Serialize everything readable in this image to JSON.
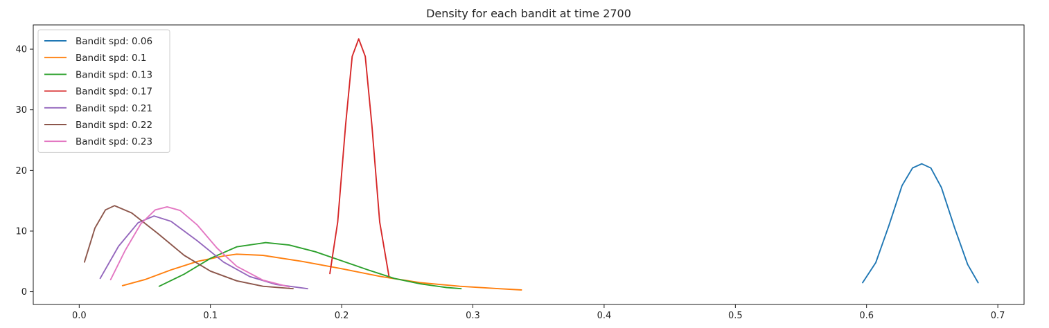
{
  "chart_data": {
    "type": "line",
    "title": "Density for each bandit at time 2700",
    "xlabel": "",
    "ylabel": "",
    "xlim": [
      -0.035,
      0.72
    ],
    "ylim": [
      -2.1,
      44
    ],
    "xticks": [
      0.0,
      0.1,
      0.2,
      0.3,
      0.4,
      0.5,
      0.6,
      0.7
    ],
    "xtick_labels": [
      "0.0",
      "0.1",
      "0.2",
      "0.3",
      "0.4",
      "0.5",
      "0.6",
      "0.7"
    ],
    "yticks": [
      0,
      10,
      20,
      30,
      40
    ],
    "ytick_labels": [
      "0",
      "10",
      "20",
      "30",
      "40"
    ],
    "grid": false,
    "legend_position": "top-left",
    "series": [
      {
        "name": "Bandit spd: 0.06",
        "color": "#1f77b4",
        "x": [
          0.597,
          0.607,
          0.617,
          0.627,
          0.635,
          0.642,
          0.649,
          0.657,
          0.667,
          0.677,
          0.685
        ],
        "y": [
          1.5,
          4.8,
          10.9,
          17.5,
          20.4,
          21.1,
          20.4,
          17.2,
          10.6,
          4.5,
          1.5
        ]
      },
      {
        "name": "Bandit spd: 0.1",
        "color": "#ff7f0e",
        "x": [
          0.033,
          0.05,
          0.07,
          0.09,
          0.11,
          0.12,
          0.14,
          0.17,
          0.2,
          0.23,
          0.26,
          0.29,
          0.32,
          0.337
        ],
        "y": [
          1.0,
          2.0,
          3.6,
          5.0,
          5.9,
          6.2,
          6.0,
          5.0,
          3.8,
          2.5,
          1.5,
          0.9,
          0.5,
          0.3
        ]
      },
      {
        "name": "Bandit spd: 0.13",
        "color": "#2ca02c",
        "x": [
          0.061,
          0.08,
          0.1,
          0.12,
          0.142,
          0.16,
          0.18,
          0.2,
          0.22,
          0.24,
          0.26,
          0.28,
          0.291
        ],
        "y": [
          0.9,
          2.9,
          5.5,
          7.4,
          8.1,
          7.7,
          6.6,
          5.1,
          3.6,
          2.2,
          1.3,
          0.7,
          0.5
        ]
      },
      {
        "name": "Bandit spd: 0.17",
        "color": "#d62728",
        "x": [
          0.191,
          0.197,
          0.203,
          0.208,
          0.213,
          0.218,
          0.223,
          0.229,
          0.236
        ],
        "y": [
          3.0,
          11.5,
          27.5,
          38.8,
          41.7,
          38.8,
          27.5,
          11.5,
          2.6
        ]
      },
      {
        "name": "Bandit spd: 0.21",
        "color": "#9467bd",
        "x": [
          0.016,
          0.03,
          0.045,
          0.057,
          0.07,
          0.09,
          0.11,
          0.13,
          0.15,
          0.174
        ],
        "y": [
          2.2,
          7.5,
          11.4,
          12.5,
          11.6,
          8.4,
          4.9,
          2.5,
          1.2,
          0.5
        ]
      },
      {
        "name": "Bandit spd: 0.22",
        "color": "#8c564b",
        "x": [
          0.004,
          0.012,
          0.02,
          0.027,
          0.04,
          0.06,
          0.08,
          0.1,
          0.12,
          0.14,
          0.163
        ],
        "y": [
          4.9,
          10.5,
          13.5,
          14.2,
          13.0,
          9.6,
          6.0,
          3.4,
          1.8,
          0.9,
          0.5
        ]
      },
      {
        "name": "Bandit spd: 0.23",
        "color": "#e377c2",
        "x": [
          0.024,
          0.035,
          0.047,
          0.058,
          0.067,
          0.077,
          0.09,
          0.105,
          0.12,
          0.14,
          0.16
        ],
        "y": [
          2.0,
          6.8,
          11.2,
          13.5,
          14.0,
          13.4,
          11.0,
          7.2,
          4.2,
          1.9,
          0.8
        ]
      }
    ]
  }
}
